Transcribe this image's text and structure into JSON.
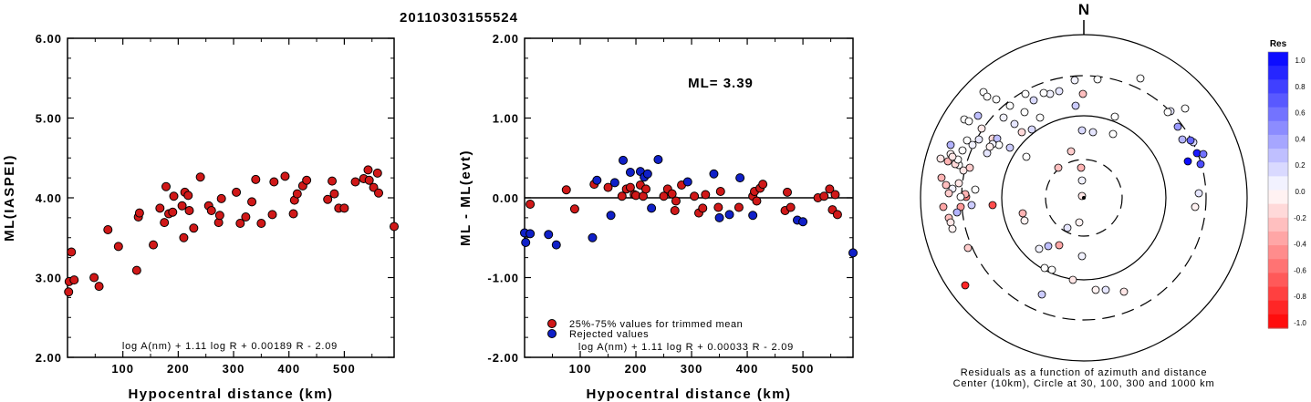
{
  "event_id": "20110303155524",
  "colors": {
    "accepted": "#d01818",
    "rejected": "#1020c8",
    "outline": "#000000"
  },
  "chart_data": [
    {
      "type": "scatter",
      "title": "",
      "xlabel": "Hypocentral distance (km)",
      "ylabel": "ML(IASPEI)",
      "xlim": [
        0,
        590
      ],
      "ylim": [
        2.0,
        6.0
      ],
      "xticks": [
        "100",
        "200",
        "300",
        "400",
        "500"
      ],
      "yticks": [
        "2.00",
        "3.00",
        "4.00",
        "5.00",
        "6.00"
      ],
      "formula": "log A(nm) + 1.11 log R + 0.00189 R - 2.09",
      "series": [
        {
          "points": [
            [
              2,
              2.82
            ],
            [
              3,
              2.95
            ],
            [
              7,
              3.32
            ],
            [
              12,
              2.97
            ],
            [
              48,
              3.0
            ],
            [
              57,
              2.89
            ],
            [
              73,
              3.6
            ],
            [
              92,
              3.39
            ],
            [
              125,
              3.09
            ],
            [
              128,
              3.76
            ],
            [
              130,
              3.81
            ],
            [
              155,
              3.41
            ],
            [
              167,
              3.87
            ],
            [
              175,
              3.69
            ],
            [
              178,
              4.14
            ],
            [
              183,
              3.8
            ],
            [
              190,
              3.82
            ],
            [
              192,
              4.02
            ],
            [
              207,
              3.9
            ],
            [
              210,
              3.5
            ],
            [
              212,
              4.07
            ],
            [
              218,
              4.03
            ],
            [
              220,
              3.84
            ],
            [
              228,
              3.62
            ],
            [
              240,
              4.26
            ],
            [
              255,
              3.9
            ],
            [
              260,
              3.84
            ],
            [
              273,
              3.69
            ],
            [
              275,
              3.78
            ],
            [
              278,
              3.99
            ],
            [
              305,
              4.07
            ],
            [
              312,
              3.68
            ],
            [
              322,
              3.76
            ],
            [
              333,
              3.95
            ],
            [
              340,
              4.23
            ],
            [
              350,
              3.68
            ],
            [
              370,
              3.79
            ],
            [
              373,
              4.2
            ],
            [
              393,
              4.27
            ],
            [
              408,
              3.8
            ],
            [
              410,
              3.97
            ],
            [
              415,
              4.05
            ],
            [
              425,
              4.15
            ],
            [
              432,
              4.22
            ],
            [
              470,
              3.98
            ],
            [
              478,
              4.21
            ],
            [
              482,
              4.05
            ],
            [
              490,
              3.87
            ],
            [
              500,
              3.87
            ],
            [
              520,
              4.2
            ],
            [
              535,
              4.24
            ],
            [
              543,
              4.35
            ],
            [
              545,
              4.22
            ],
            [
              553,
              4.13
            ],
            [
              560,
              4.31
            ],
            [
              562,
              4.06
            ],
            [
              590,
              3.64
            ]
          ]
        }
      ]
    },
    {
      "type": "scatter",
      "title": "",
      "xlabel": "Hypocentral distance (km)",
      "ylabel": "ML - ML(evt)",
      "xlim": [
        0,
        590
      ],
      "ylim": [
        -2.0,
        2.0
      ],
      "xticks": [
        "100",
        "200",
        "300",
        "400",
        "500"
      ],
      "yticks": [
        "-2.00",
        "-1.00",
        "0.00",
        "1.00",
        "2.00"
      ],
      "annotation": "ML= 3.39",
      "formula": "log A(nm) + 1.11 log R + 0.00033 R - 2.09",
      "reference_line": 0.0,
      "legend": [
        {
          "label": "25%-75% values for trimmed mean",
          "color": "#d01818"
        },
        {
          "label": "Rejected values",
          "color": "#1020c8"
        }
      ],
      "series": [
        {
          "name": "25%-75% values for trimmed mean",
          "points": [
            [
              10,
              -0.08
            ],
            [
              75,
              0.1
            ],
            [
              90,
              -0.14
            ],
            [
              125,
              0.17
            ],
            [
              150,
              0.13
            ],
            [
              175,
              0.02
            ],
            [
              183,
              0.11
            ],
            [
              190,
              0.13
            ],
            [
              197,
              0.04
            ],
            [
              200,
              0.03
            ],
            [
              208,
              0.16
            ],
            [
              213,
              0.02
            ],
            [
              218,
              0.11
            ],
            [
              250,
              0.02
            ],
            [
              257,
              0.11
            ],
            [
              265,
              0.05
            ],
            [
              270,
              -0.16
            ],
            [
              272,
              -0.04
            ],
            [
              282,
              0.16
            ],
            [
              305,
              0.02
            ],
            [
              313,
              -0.19
            ],
            [
              320,
              -0.13
            ],
            [
              325,
              0.04
            ],
            [
              348,
              -0.12
            ],
            [
              352,
              0.08
            ],
            [
              385,
              -0.12
            ],
            [
              410,
              0.02
            ],
            [
              413,
              0.08
            ],
            [
              417,
              -0.04
            ],
            [
              423,
              0.12
            ],
            [
              428,
              0.17
            ],
            [
              468,
              -0.16
            ],
            [
              472,
              0.07
            ],
            [
              478,
              -0.12
            ],
            [
              527,
              0.0
            ],
            [
              538,
              0.02
            ],
            [
              548,
              0.11
            ],
            [
              553,
              -0.15
            ],
            [
              558,
              0.04
            ],
            [
              562,
              -0.21
            ]
          ]
        },
        {
          "name": "Rejected values",
          "points": [
            [
              0,
              -0.44
            ],
            [
              2,
              -0.56
            ],
            [
              10,
              -0.45
            ],
            [
              43,
              -0.46
            ],
            [
              57,
              -0.59
            ],
            [
              122,
              -0.5
            ],
            [
              130,
              0.22
            ],
            [
              155,
              -0.22
            ],
            [
              162,
              0.19
            ],
            [
              177,
              0.47
            ],
            [
              190,
              0.32
            ],
            [
              208,
              0.33
            ],
            [
              215,
              0.26
            ],
            [
              221,
              0.3
            ],
            [
              228,
              -0.13
            ],
            [
              240,
              0.48
            ],
            [
              293,
              0.2
            ],
            [
              340,
              0.3
            ],
            [
              350,
              -0.25
            ],
            [
              368,
              -0.21
            ],
            [
              387,
              0.25
            ],
            [
              410,
              -0.22
            ],
            [
              490,
              -0.28
            ],
            [
              500,
              -0.3
            ],
            [
              590,
              -0.69
            ]
          ]
        }
      ]
    },
    {
      "type": "scatter",
      "title": "N",
      "caption_line1": "Residuals as a function of azimuth and distance",
      "caption_line2": "Center (10km), Circle at 30, 100, 300 and 1000 km",
      "colorbar_title": "Res",
      "colorbar_ticks": [
        "1.0",
        "0.8",
        "0.6",
        "0.4",
        "0.2",
        "0.0",
        "-0.2",
        "-0.4",
        "-0.6",
        "-0.8",
        "-1.0"
      ],
      "points_polar_offset_res": [
        [
          -2,
          -2,
          -0.1
        ],
        [
          -2,
          -19,
          0.05
        ],
        [
          -3,
          -33,
          -0.3
        ],
        [
          -5,
          27,
          -0.05
        ],
        [
          -14,
          -51,
          -0.2
        ],
        [
          -18,
          33,
          0.1
        ],
        [
          -27,
          52,
          -0.35
        ],
        [
          -39,
          53,
          0.25
        ],
        [
          32,
          -70,
          0.0
        ],
        [
          -2,
          -74,
          0.15
        ],
        [
          10,
          -72,
          0.1
        ],
        [
          34,
          -89,
          0.0
        ],
        [
          -100,
          8,
          -0.7
        ],
        [
          -157,
          -43,
          -0.1
        ],
        [
          -65,
          25,
          -0.05
        ],
        [
          -68,
          -72,
          -0.15
        ],
        [
          -37,
          -114,
          0.05
        ],
        [
          -131,
          -86,
          0.0
        ],
        [
          -127,
          55,
          -0.2
        ],
        [
          -48,
          -88,
          0.0
        ],
        [
          -9,
          -101,
          0.2
        ],
        [
          -129,
          -1,
          -0.5
        ],
        [
          -135,
          10,
          -0.4
        ],
        [
          -151,
          -14,
          -0.25
        ],
        [
          -154,
          10,
          -0.35
        ],
        [
          -156,
          -22,
          -0.3
        ],
        [
          -146,
          -48,
          -0.05
        ],
        [
          -137,
          -16,
          -0.1
        ],
        [
          -133,
          -52,
          0.0
        ],
        [
          -132,
          -30,
          -0.1
        ],
        [
          -137,
          -36,
          0.0
        ],
        [
          -141,
          -37,
          -0.15
        ],
        [
          -144,
          -10,
          0.05
        ],
        [
          -148,
          -5,
          -0.2
        ],
        [
          -148,
          22,
          -0.25
        ],
        [
          -146,
          27,
          -0.1
        ],
        [
          -146,
          -58,
          0.3
        ],
        [
          -116,
          -90,
          0.25
        ],
        [
          -96,
          -108,
          0.0
        ],
        [
          -138,
          -42,
          0.0
        ],
        [
          -144,
          34,
          -0.05
        ],
        [
          -128,
          -63,
          0.0
        ],
        [
          -126,
          -84,
          0.0
        ],
        [
          -115,
          -64,
          0.1
        ],
        [
          -125,
          -33,
          -0.2
        ],
        [
          -112,
          -76,
          -0.1
        ],
        [
          -110,
          -116,
          0.0
        ],
        [
          -100,
          -65,
          -0.15
        ],
        [
          -95,
          -65,
          0.25
        ],
        [
          -88,
          -88,
          0.05
        ],
        [
          -81,
          -101,
          0.0
        ],
        [
          -76,
          -81,
          0.1
        ],
        [
          -65,
          -94,
          0.0
        ],
        [
          -64,
          -114,
          0.0
        ],
        [
          -44,
          -115,
          0.0
        ],
        [
          -55,
          -107,
          0.15
        ],
        [
          62,
          -131,
          0.0
        ],
        [
          15,
          -130,
          0.0
        ],
        [
          -10,
          -129,
          0.05
        ],
        [
          -27,
          -117,
          0.1
        ],
        [
          103,
          -78,
          0.4
        ],
        [
          95,
          -95,
          0.1
        ],
        [
          114,
          -40,
          0.95
        ],
        [
          124,
          -49,
          0.9
        ],
        [
          131,
          -48,
          0.55
        ],
        [
          128,
          -37,
          0.7
        ],
        [
          120,
          -61,
          0.15
        ],
        [
          108,
          -64,
          0.3
        ],
        [
          111,
          -98,
          0.0
        ],
        [
          -1,
          -114,
          -0.25
        ],
        [
          117,
          -63,
          0.6
        ],
        [
          -12,
          90,
          -0.1
        ],
        [
          -130,
          96,
          -0.85
        ],
        [
          -35,
          79,
          0.0
        ],
        [
          -49,
          56,
          0.05
        ],
        [
          -46,
          106,
          0.2
        ],
        [
          13,
          101,
          -0.05
        ],
        [
          44,
          103,
          -0.1
        ],
        [
          -43,
          77,
          0.0
        ],
        [
          -67,
          17,
          -0.3
        ],
        [
          -93,
          -58,
          0.0
        ],
        [
          -100,
          -59,
          0.05
        ],
        [
          122,
          10,
          -0.05
        ],
        [
          92,
          -94,
          0.0
        ],
        [
          -28,
          -33,
          -0.25
        ],
        [
          24,
          101,
          0.1
        ],
        [
          126,
          -5,
          0.1
        ],
        [
          -130,
          -4,
          -0.3
        ],
        [
          -119,
          -9,
          0.0
        ],
        [
          -149,
          -40,
          -0.3
        ],
        [
          -144,
          -45,
          -0.1
        ],
        [
          -139,
          16,
          0.3
        ],
        [
          -2,
          64,
          0.05
        ],
        [
          -106,
          -49,
          0.1
        ],
        [
          -106,
          -111,
          0.0
        ],
        [
          -57,
          -75,
          0.15
        ],
        [
          -63,
          -45,
          0.0
        ],
        [
          -123,
          8,
          0.2
        ],
        [
          -135,
          -1,
          0.0
        ],
        [
          -122,
          -58,
          0.05
        ],
        [
          -81,
          -55,
          0.2
        ],
        [
          -103,
          -56,
          -0.05
        ]
      ]
    }
  ]
}
